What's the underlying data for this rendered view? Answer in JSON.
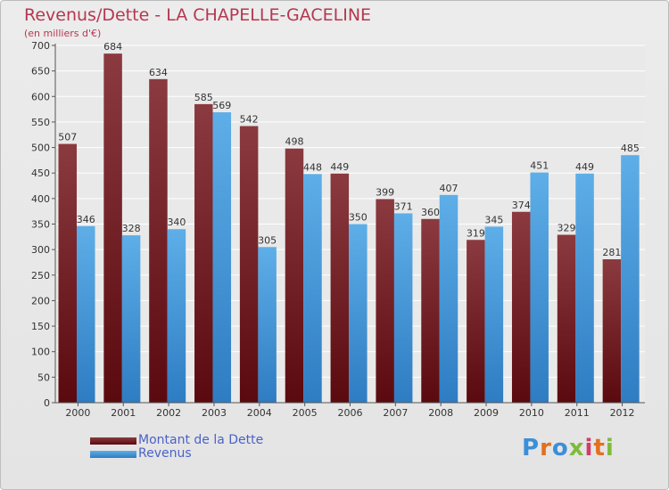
{
  "header": {
    "title": "Revenus/Dette - LA CHAPELLE-GACELINE",
    "subtitle": "(en milliers d'€)"
  },
  "legend": {
    "debt_label": "Montant de la Dette",
    "revenue_label": "Revenus"
  },
  "logo": {
    "text": "Proxiti"
  },
  "colors": {
    "debt_top": "#8b3a3f",
    "debt_bottom": "#5a0a0e",
    "revenue_top": "#5eaee8",
    "revenue_bottom": "#2e7cc2",
    "title": "#b5374f",
    "legend_text": "#4a62c8"
  },
  "chart_data": {
    "type": "bar",
    "title": "Revenus/Dette - LA CHAPELLE-GACELINE",
    "subtitle": "(en milliers d'€)",
    "categories": [
      "2000",
      "2001",
      "2002",
      "2003",
      "2004",
      "2005",
      "2006",
      "2007",
      "2008",
      "2009",
      "2010",
      "2011",
      "2012"
    ],
    "series": [
      {
        "name": "Montant de la Dette",
        "values": [
          507,
          684,
          634,
          585,
          542,
          498,
          449,
          399,
          360,
          319,
          374,
          329,
          281
        ]
      },
      {
        "name": "Revenus",
        "values": [
          346,
          328,
          340,
          569,
          305,
          448,
          350,
          371,
          407,
          345,
          451,
          449,
          485
        ]
      }
    ],
    "ylim": [
      0,
      700
    ],
    "yticks": [
      0,
      50,
      100,
      150,
      200,
      250,
      300,
      350,
      400,
      450,
      500,
      550,
      600,
      650,
      700
    ],
    "grid": true,
    "legend_position": "bottom-left"
  }
}
